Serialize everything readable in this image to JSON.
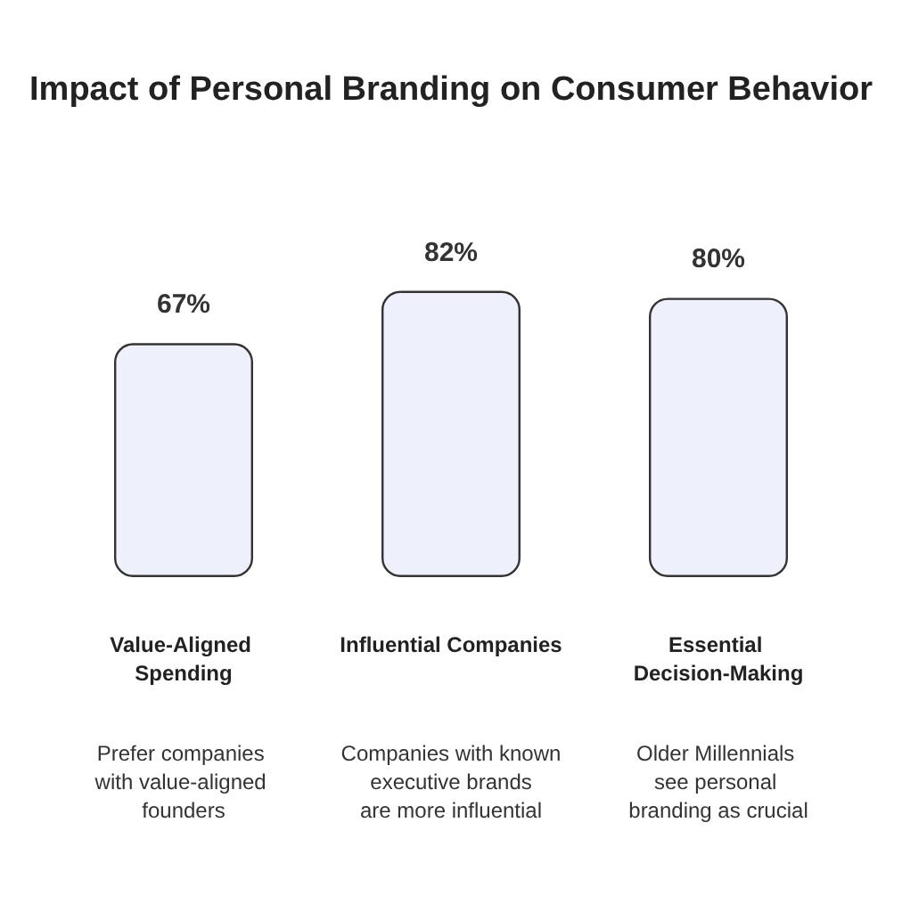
{
  "chart_data": {
    "type": "bar",
    "title": "Impact of Personal Branding on Consumer Behavior",
    "categories": [
      "Value-Aligned Spending",
      "Influential Companies",
      "Essential Decision-Making"
    ],
    "values": [
      67,
      82,
      80
    ],
    "color": "#eef0fc",
    "value_labels": [
      "67%",
      "82%",
      "80%"
    ],
    "annotations": [
      "Prefer companies with value-aligned founders",
      "Companies with known executive brands are more influential",
      "Older Millennials see personal branding as crucial"
    ],
    "grid": false
  }
}
